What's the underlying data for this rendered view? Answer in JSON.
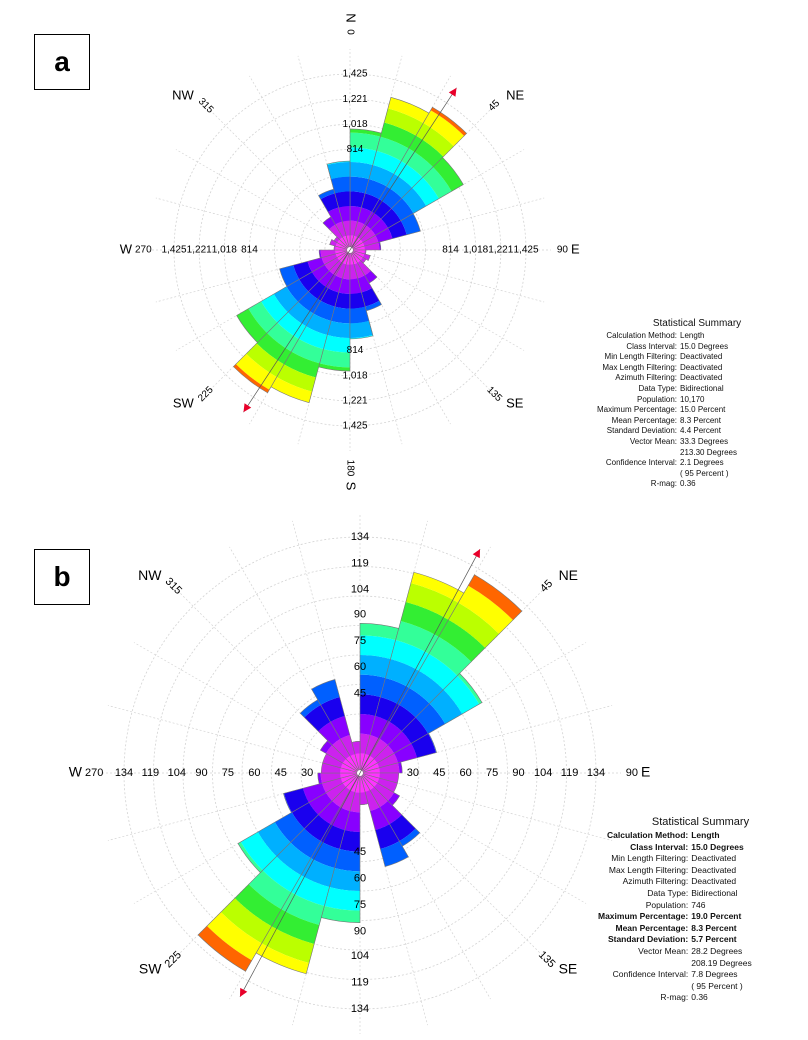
{
  "chart_data": [
    {
      "type": "rose",
      "panel_label": "a",
      "directions": {
        "N": "N",
        "NE": "NE",
        "E": "E",
        "SE": "SE",
        "S": "S",
        "SW": "SW",
        "W": "W",
        "NW": "NW"
      },
      "angle_labels": {
        "0": "0",
        "45": "45",
        "90": "90",
        "135": "135",
        "180": "180",
        "225": "225",
        "270": "270",
        "315": "315"
      },
      "radial_tick_labels": [
        "814",
        "1,018",
        "1,221",
        "1,425"
      ],
      "radial_tick_values": [
        814,
        1018,
        1221,
        1425
      ],
      "vertical_tick_labels_top": [
        "1,425",
        "1,221",
        "1,018",
        "814"
      ],
      "vertical_tick_labels_bottom": [
        "814",
        "1,018",
        "1,221",
        "1,425"
      ],
      "r_max": 1425,
      "class_interval_deg": 15,
      "data_type": "Bidirectional",
      "petals": [
        {
          "start": 0,
          "end": 15,
          "value": 980
        },
        {
          "start": 15,
          "end": 30,
          "value": 1280
        },
        {
          "start": 30,
          "end": 45,
          "value": 1335
        },
        {
          "start": 45,
          "end": 60,
          "value": 1060
        },
        {
          "start": 60,
          "end": 75,
          "value": 590
        },
        {
          "start": 75,
          "end": 90,
          "value": 250
        },
        {
          "start": 90,
          "end": 105,
          "value": 130
        },
        {
          "start": 105,
          "end": 120,
          "value": 170
        },
        {
          "start": 120,
          "end": 135,
          "value": 150
        },
        {
          "start": 135,
          "end": 150,
          "value": 310
        },
        {
          "start": 150,
          "end": 165,
          "value": 510
        },
        {
          "start": 165,
          "end": 180,
          "value": 700
        },
        {
          "start": 345,
          "end": 360,
          "value": 720
        }
      ],
      "vector_mean_deg": 33.3,
      "stats": {
        "title": "Statistical Summary",
        "rows": [
          [
            "Calculation Method:",
            "Length"
          ],
          [
            "Class Interval:",
            "15.0 Degrees"
          ],
          [
            "Min Length Filtering:",
            "Deactivated"
          ],
          [
            "Max Length Filtering:",
            "Deactivated"
          ],
          [
            "Azimuth Filtering:",
            "Deactivated"
          ],
          [
            "Data Type:",
            "Bidirectional"
          ],
          [
            "Population:",
            "10,170"
          ],
          [
            "Maximum Percentage:",
            "15.0 Percent"
          ],
          [
            "Mean Percentage:",
            "8.3 Percent"
          ],
          [
            "Standard Deviation:",
            "4.4 Percent"
          ],
          [
            "Vector Mean:",
            "33.3 Degrees"
          ],
          [
            "",
            "213.30 Degrees"
          ],
          [
            "Confidence Interval:",
            "2.1 Degrees"
          ],
          [
            "",
            "( 95 Percent )"
          ],
          [
            "R-mag:",
            "0.36"
          ]
        ]
      }
    },
    {
      "type": "rose",
      "panel_label": "b",
      "directions": {
        "N": "N",
        "NE": "NE",
        "E": "E",
        "SE": "SE",
        "S": "S",
        "SW": "SW",
        "W": "W",
        "NW": "NW"
      },
      "angle_labels": {
        "0": "0",
        "45": "45",
        "90": "90",
        "135": "135",
        "180": "180",
        "225": "225",
        "270": "270",
        "315": "315"
      },
      "radial_tick_labels": [
        "30",
        "45",
        "60",
        "75",
        "90",
        "104",
        "119",
        "134"
      ],
      "radial_tick_values": [
        30,
        45,
        60,
        75,
        90,
        104,
        119,
        134
      ],
      "vertical_tick_labels_top": [
        "134",
        "119",
        "104",
        "90",
        "75",
        "60",
        "45"
      ],
      "vertical_tick_labels_bottom": [
        "45",
        "60",
        "75",
        "90",
        "104",
        "119",
        "134"
      ],
      "r_max": 134,
      "class_interval_deg": 15,
      "data_type": "Bidirectional",
      "petals": [
        {
          "start": 0,
          "end": 15,
          "value": 85
        },
        {
          "start": 15,
          "end": 30,
          "value": 118
        },
        {
          "start": 30,
          "end": 45,
          "value": 130
        },
        {
          "start": 45,
          "end": 60,
          "value": 80
        },
        {
          "start": 60,
          "end": 75,
          "value": 45
        },
        {
          "start": 75,
          "end": 90,
          "value": 24
        },
        {
          "start": 90,
          "end": 105,
          "value": 22
        },
        {
          "start": 105,
          "end": 120,
          "value": 22
        },
        {
          "start": 120,
          "end": 135,
          "value": 26
        },
        {
          "start": 135,
          "end": 150,
          "value": 48
        },
        {
          "start": 150,
          "end": 165,
          "value": 20
        },
        {
          "start": 165,
          "end": 180,
          "value": 18
        },
        {
          "start": 330,
          "end": 345,
          "value": 55
        },
        {
          "start": 345,
          "end": 360,
          "value": 18
        }
      ],
      "vector_mean_deg": 28.2,
      "stats": {
        "title": "Statistical Summary",
        "rows": [
          [
            "Calculation Method:",
            "Length"
          ],
          [
            "Class Interval:",
            "15.0 Degrees"
          ],
          [
            "Min Length Filtering:",
            "Deactivated"
          ],
          [
            "Max Length Filtering:",
            "Deactivated"
          ],
          [
            "Azimuth Filtering:",
            "Deactivated"
          ],
          [
            "Data Type:",
            "Bidirectional"
          ],
          [
            "Population:",
            "746"
          ],
          [
            "Maximum Percentage:",
            "19.0 Percent"
          ],
          [
            "Mean Percentage:",
            "8.3 Percent"
          ],
          [
            "Standard Deviation:",
            "5.7 Percent"
          ],
          [
            "Vector Mean:",
            "28.2 Degrees"
          ],
          [
            "",
            "208.19 Degrees"
          ],
          [
            "Confidence Interval:",
            "7.8 Degrees"
          ],
          [
            "",
            "( 95 Percent )"
          ],
          [
            "R-mag:",
            "0.36"
          ]
        ]
      }
    }
  ],
  "band_colors": [
    "#ff33ff",
    "#cc22ee",
    "#8800ff",
    "#1a00ee",
    "#0060ff",
    "#00b0ff",
    "#00ffff",
    "#33ff99",
    "#33ee33",
    "#bbff00",
    "#ffff00",
    "#ff6600"
  ],
  "grid_color": "#d3d3d3",
  "marker_color": "#e8002a",
  "petal_edge_color": "#777777"
}
